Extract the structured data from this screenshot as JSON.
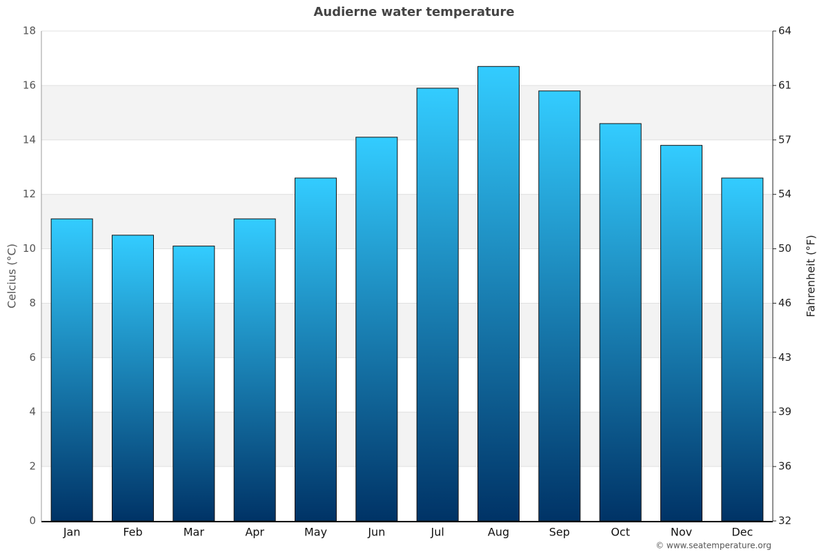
{
  "chart_data": {
    "type": "bar",
    "title": "Audierne water temperature",
    "categories": [
      "Jan",
      "Feb",
      "Mar",
      "Apr",
      "May",
      "Jun",
      "Jul",
      "Aug",
      "Sep",
      "Oct",
      "Nov",
      "Dec"
    ],
    "values": [
      11.1,
      10.5,
      10.1,
      11.1,
      12.6,
      14.1,
      15.9,
      16.7,
      15.8,
      14.6,
      13.8,
      12.6
    ],
    "gradient": {
      "top": "#33ccff",
      "bottom": "#003366"
    },
    "ylabel": "Celcius (°C)",
    "y2label": "Fahrenheit (°F)",
    "ylim": [
      0,
      18
    ],
    "yticks": [
      0,
      2,
      4,
      6,
      8,
      10,
      12,
      14,
      16,
      18
    ],
    "y2lim": [
      32,
      64.4
    ],
    "y2ticks": [
      32,
      {
        "value": 35.6,
        "label": "36"
      },
      {
        "value": 39.2,
        "label": "39"
      },
      {
        "value": 42.8,
        "label": "43"
      },
      {
        "value": 46.4,
        "label": "46"
      },
      50,
      {
        "value": 53.6,
        "label": "54"
      },
      {
        "value": 57.2,
        "label": "57"
      },
      {
        "value": 60.8,
        "label": "61"
      },
      {
        "value": 64.4,
        "label": "64"
      }
    ],
    "grid": true,
    "band_color": "#f3f3f3",
    "credit": "© www.seatemperature.org"
  }
}
